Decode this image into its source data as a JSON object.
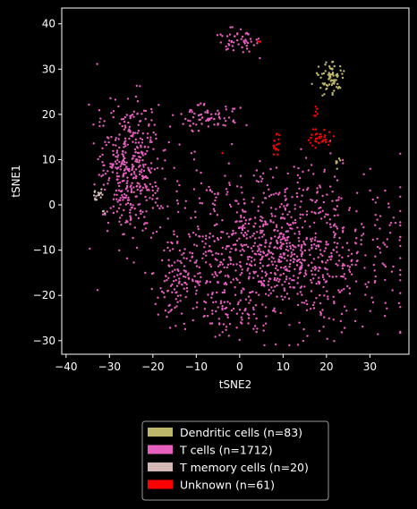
{
  "chart_data": {
    "type": "scatter",
    "xlabel": "tSNE2",
    "ylabel": "tSNE1",
    "xlim": [
      -41,
      39
    ],
    "ylim": [
      -33,
      43.5
    ],
    "xticks": [
      -40,
      -30,
      -20,
      -10,
      0,
      10,
      20,
      30
    ],
    "yticks": [
      -30,
      -20,
      -10,
      0,
      10,
      20,
      30,
      40
    ],
    "xtick_labels": [
      "−40",
      "−30",
      "−20",
      "−10",
      "0",
      "10",
      "20",
      "30"
    ],
    "ytick_labels": [
      "−30",
      "−20",
      "−10",
      "0",
      "10",
      "20",
      "30",
      "40"
    ],
    "grid": false,
    "legend_position": "below",
    "series": [
      {
        "name": "Dendritic cells (n=83)",
        "color": "#bdb76b",
        "count": 83,
        "clusters": [
          {
            "cx": 21,
            "cy": 28,
            "sx": 1.6,
            "sy": 1.7,
            "n": 76
          },
          {
            "cx": 22.5,
            "cy": 9.3,
            "sx": 0.3,
            "sy": 0.6,
            "n": 7
          }
        ]
      },
      {
        "name": "T cells (n=1712)",
        "color": "#e75fbf",
        "count": 1712,
        "clusters": [
          {
            "cx": -25,
            "cy": 8,
            "sx": 4,
            "sy": 7.5,
            "n": 420
          },
          {
            "cx": 10,
            "cy": -10,
            "sx": 13,
            "sy": 8,
            "n": 980
          },
          {
            "cx": -14,
            "cy": -18,
            "sx": 2.5,
            "sy": 4,
            "n": 90
          },
          {
            "cx": -2,
            "cy": -23,
            "sx": 4,
            "sy": 3,
            "n": 80
          },
          {
            "cx": -8,
            "cy": 19.5,
            "sx": 3.5,
            "sy": 1.5,
            "n": 70
          },
          {
            "cx": 0,
            "cy": 36.5,
            "sx": 2.2,
            "sy": 1.5,
            "n": 50
          },
          {
            "cx": 15,
            "cy": 5,
            "sx": 4,
            "sy": 3,
            "n": 22
          }
        ]
      },
      {
        "name": "T memory cells (n=20)",
        "color": "#d4b8b5",
        "count": 20,
        "clusters": [
          {
            "cx": -32.5,
            "cy": 2,
            "sx": 0.6,
            "sy": 0.8,
            "n": 17
          },
          {
            "cx": -31,
            "cy": -1.5,
            "sx": 0.5,
            "sy": 0.4,
            "n": 3
          }
        ]
      },
      {
        "name": "Unknown (n=61)",
        "color": "#ff0000",
        "count": 61,
        "clusters": [
          {
            "cx": 18.5,
            "cy": 14.5,
            "sx": 1.3,
            "sy": 1,
            "n": 33
          },
          {
            "cx": 8.5,
            "cy": 14,
            "sx": 0.5,
            "sy": 1.5,
            "n": 18
          },
          {
            "cx": 17.5,
            "cy": 21,
            "sx": 0.3,
            "sy": 1.5,
            "n": 6
          },
          {
            "cx": 4.5,
            "cy": 36,
            "sx": 0.3,
            "sy": 0.3,
            "n": 3
          },
          {
            "cx": -4,
            "cy": 11.5,
            "sx": 0.1,
            "sy": 0.1,
            "n": 1
          }
        ]
      }
    ]
  }
}
